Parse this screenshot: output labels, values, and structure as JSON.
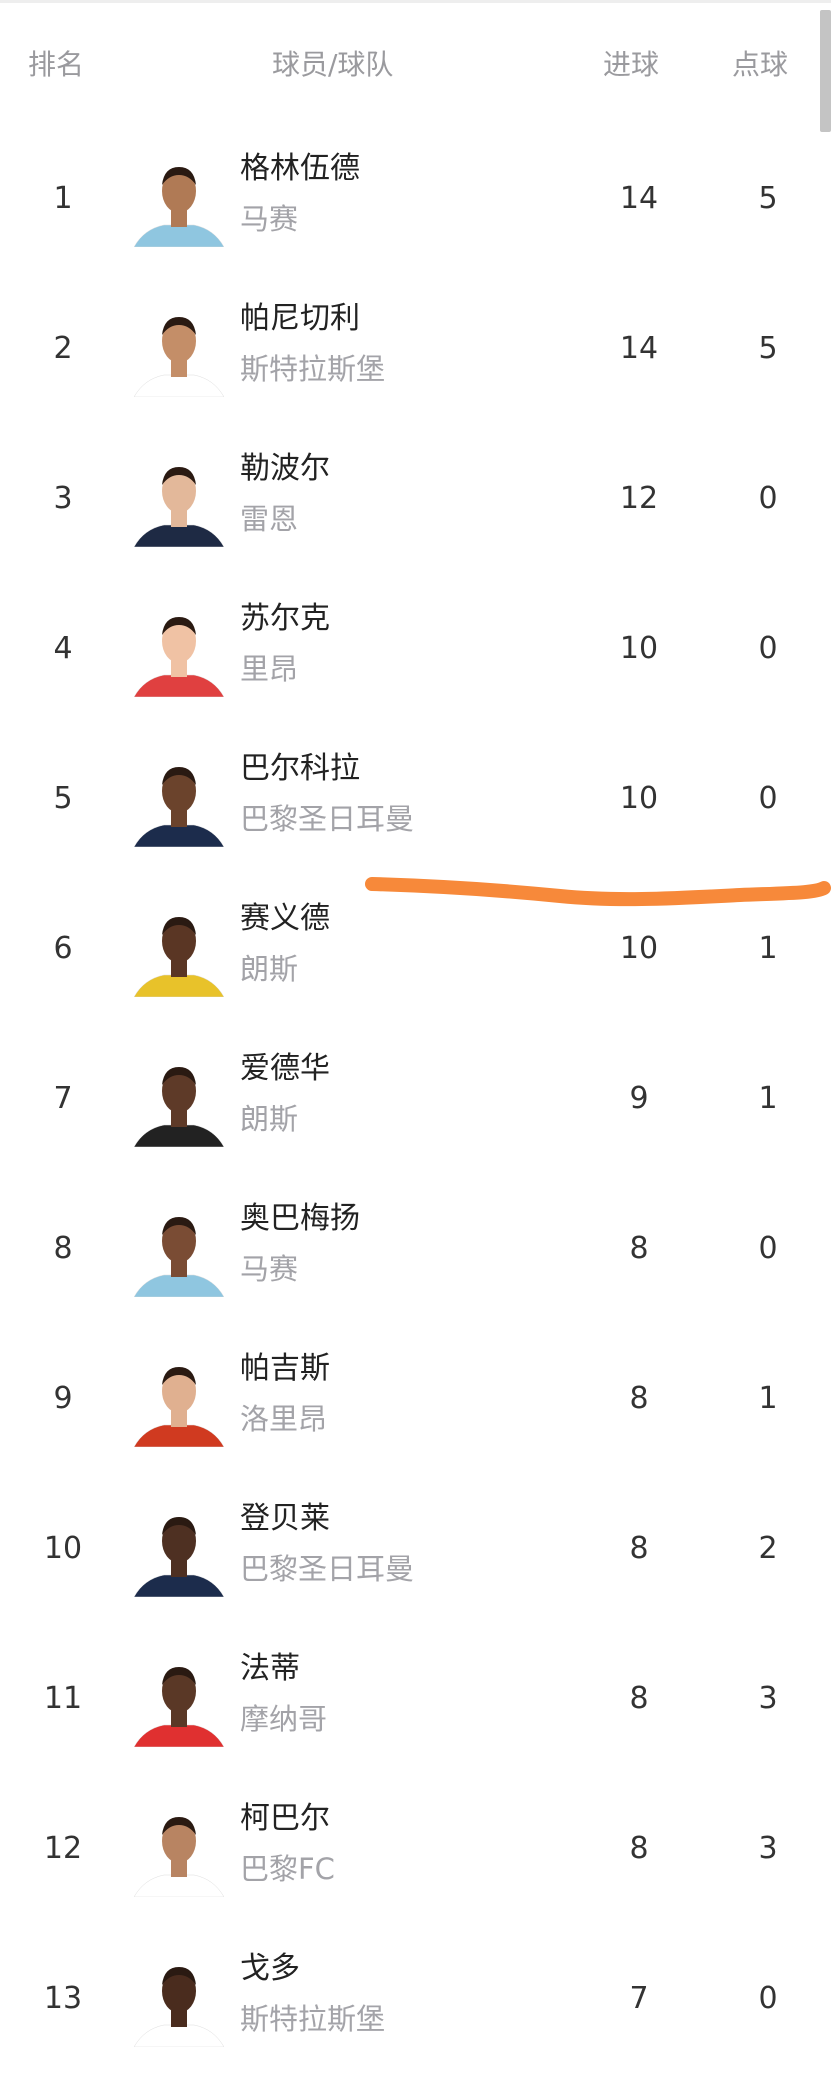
{
  "header": {
    "rank": "排名",
    "player_team": "球员/球队",
    "goals": "进球",
    "penalties": "点球"
  },
  "annotation_color": "#F7893A",
  "rows": [
    {
      "rank": "1",
      "name": "格林伍德",
      "team": "马赛",
      "goals": "14",
      "penalties": "5",
      "skin": "#b07a55",
      "shirt": "#8fc6e0"
    },
    {
      "rank": "2",
      "name": "帕尼切利",
      "team": "斯特拉斯堡",
      "goals": "14",
      "penalties": "5",
      "skin": "#c48e68",
      "shirt": "#ffffff"
    },
    {
      "rank": "3",
      "name": "勒波尔",
      "team": "雷恩",
      "goals": "12",
      "penalties": "0",
      "skin": "#e3b89a",
      "shirt": "#1e2a44"
    },
    {
      "rank": "4",
      "name": "苏尔克",
      "team": "里昂",
      "goals": "10",
      "penalties": "0",
      "skin": "#f0c2a4",
      "shirt": "#e04040"
    },
    {
      "rank": "5",
      "name": "巴尔科拉",
      "team": "巴黎圣日耳曼",
      "goals": "10",
      "penalties": "0",
      "skin": "#6b432c",
      "shirt": "#1c2c4c"
    },
    {
      "rank": "6",
      "name": "赛义德",
      "team": "朗斯",
      "goals": "10",
      "penalties": "1",
      "skin": "#5a3624",
      "shirt": "#e8c22a"
    },
    {
      "rank": "7",
      "name": "爱德华",
      "team": "朗斯",
      "goals": "9",
      "penalties": "1",
      "skin": "#5e3a28",
      "shirt": "#222222"
    },
    {
      "rank": "8",
      "name": "奥巴梅扬",
      "team": "马赛",
      "goals": "8",
      "penalties": "0",
      "skin": "#7a4c34",
      "shirt": "#8fc6e0"
    },
    {
      "rank": "9",
      "name": "帕吉斯",
      "team": "洛里昂",
      "goals": "8",
      "penalties": "1",
      "skin": "#e0b090",
      "shirt": "#d03a20"
    },
    {
      "rank": "10",
      "name": "登贝莱",
      "team": "巴黎圣日耳曼",
      "goals": "8",
      "penalties": "2",
      "skin": "#4e3022",
      "shirt": "#1c2c4c"
    },
    {
      "rank": "11",
      "name": "法蒂",
      "team": "摩纳哥",
      "goals": "8",
      "penalties": "3",
      "skin": "#5a3826",
      "shirt": "#e03030"
    },
    {
      "rank": "12",
      "name": "柯巴尔",
      "team": "巴黎FC",
      "goals": "8",
      "penalties": "3",
      "skin": "#b88462",
      "shirt": "#ffffff"
    },
    {
      "rank": "13",
      "name": "戈多",
      "team": "斯特拉斯堡",
      "goals": "7",
      "penalties": "0",
      "skin": "#4a2c1e",
      "shirt": "#ffffff"
    }
  ]
}
